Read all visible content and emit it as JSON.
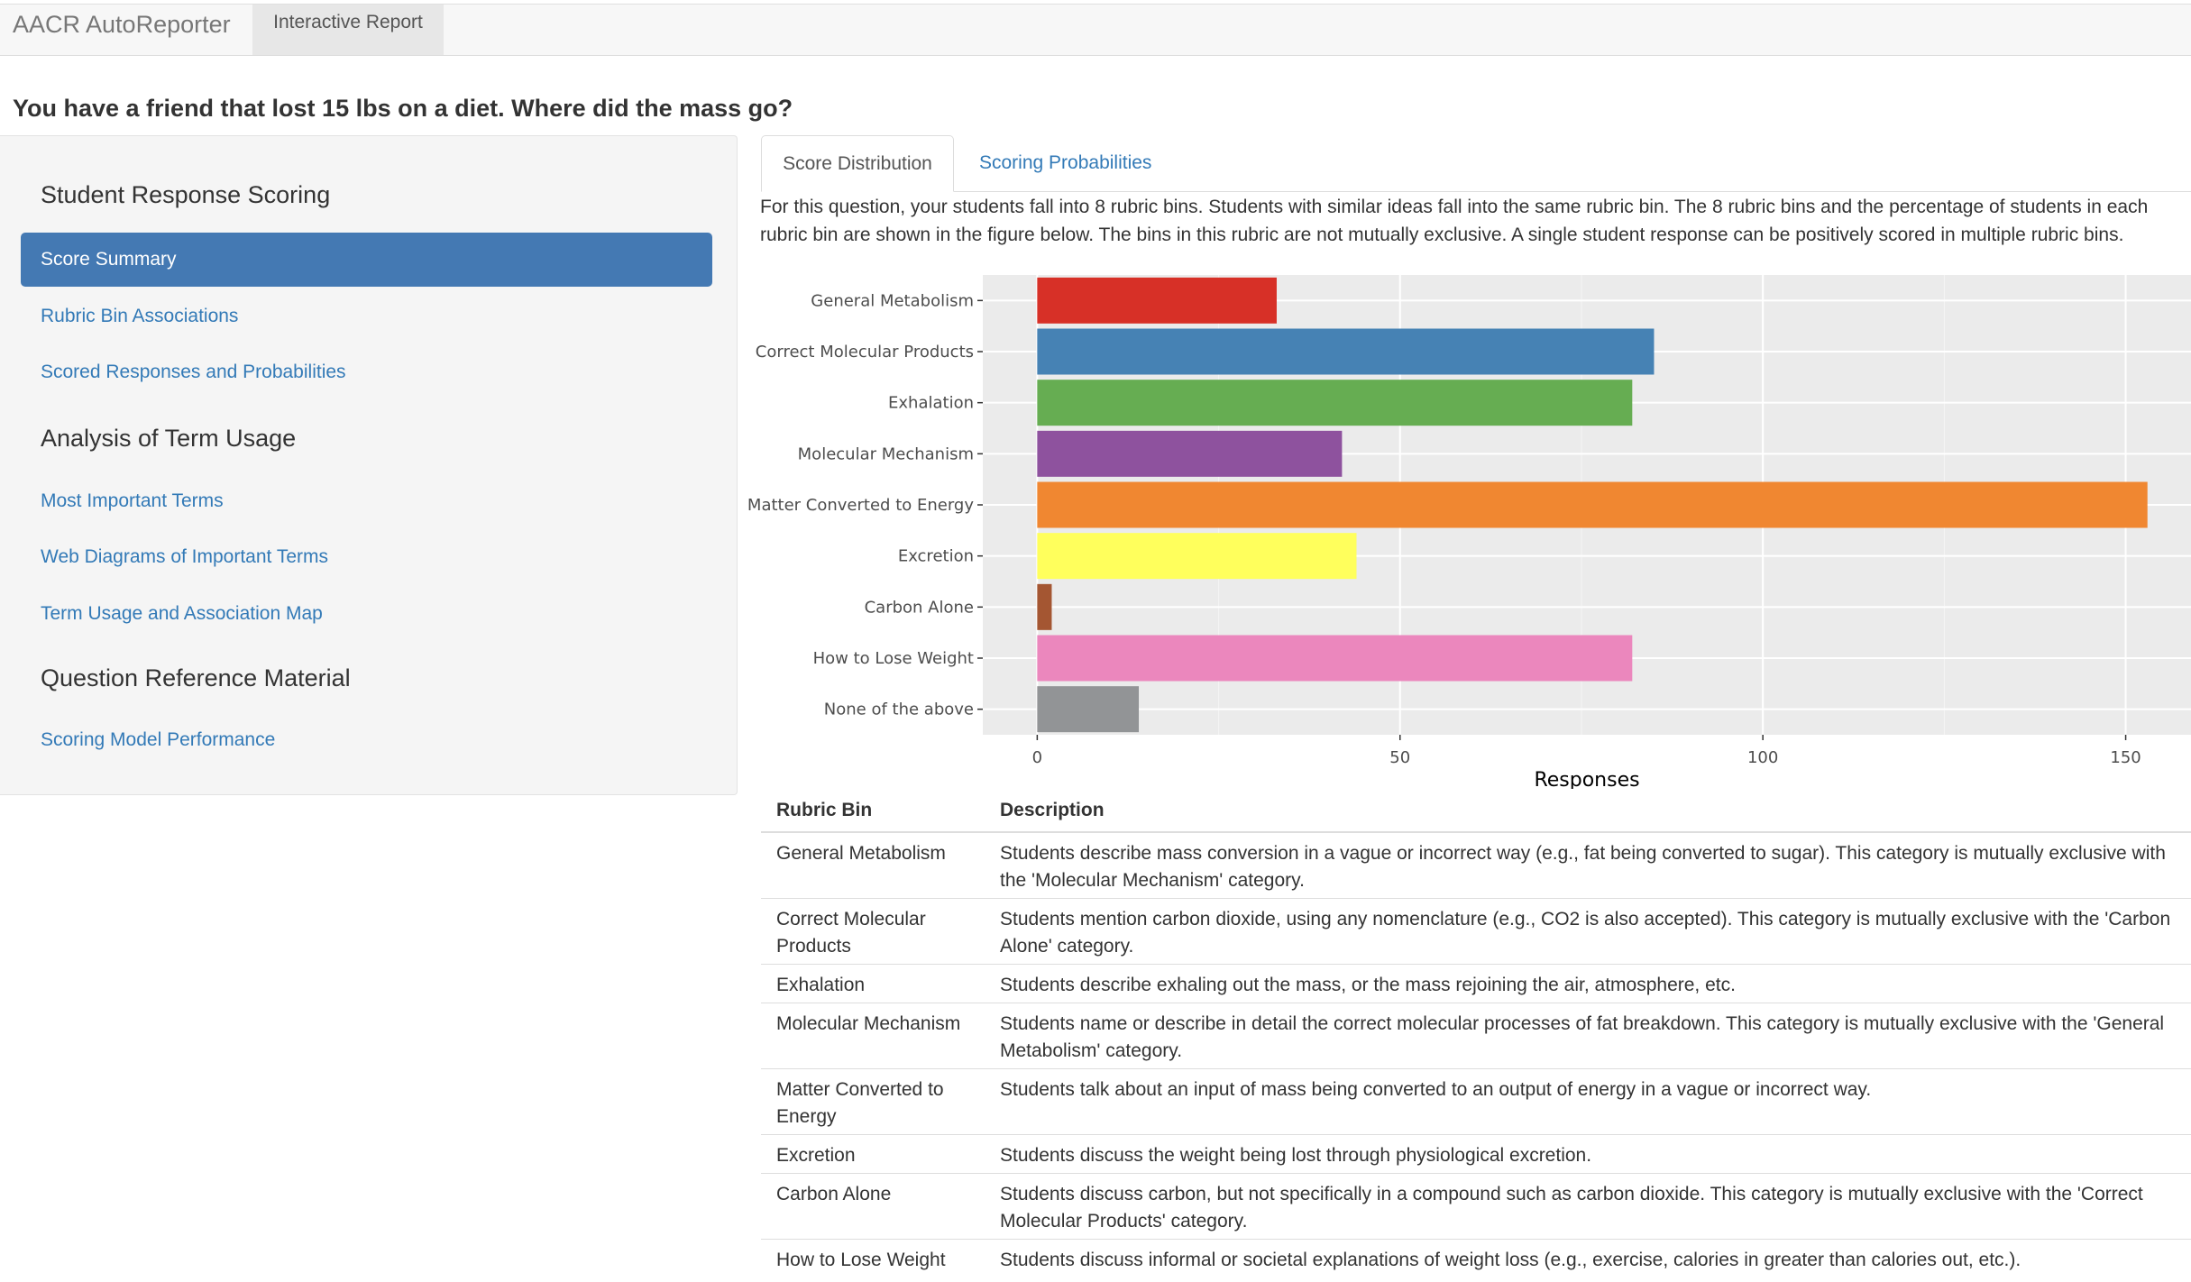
{
  "navbar": {
    "brand": "AACR AutoReporter",
    "tab": "Interactive Report"
  },
  "question": "You have a friend that lost 15 lbs on a diet. Where did the mass go?",
  "sidebar": {
    "sections": [
      {
        "heading": "Student Response Scoring",
        "items": [
          "Score Summary",
          "Rubric Bin Associations",
          "Scored Responses and Probabilities"
        ]
      },
      {
        "heading": "Analysis of Term Usage",
        "items": [
          "Most Important Terms",
          "Web Diagrams of Important Terms",
          "Term Usage and Association Map"
        ]
      },
      {
        "heading": "Question Reference Material",
        "items": [
          "Scoring Model Performance"
        ]
      }
    ],
    "active_item": "Score Summary"
  },
  "tabs": {
    "active": "Score Distribution",
    "other": "Scoring Probabilities"
  },
  "intro": "For this question, your students fall into 8 rubric bins. Students with similar ideas fall into the same rubric bin. The 8 rubric bins and the percentage of students in each rubric bin are shown in the figure below. The bins in this rubric are not mutually exclusive. A single student response can be positively scored in multiple rubric bins.",
  "chart_data": {
    "type": "bar",
    "orientation": "horizontal",
    "categories": [
      "General Metabolism",
      "Correct Molecular Products",
      "Exhalation",
      "Molecular Mechanism",
      "Matter Converted to Energy",
      "Excretion",
      "Carbon Alone",
      "How to Lose Weight",
      "None of the above"
    ],
    "values": [
      33,
      85,
      82,
      42,
      153,
      44,
      2,
      82,
      14
    ],
    "colors": [
      "#d73027",
      "#4682b4",
      "#66ad52",
      "#8e529e",
      "#f08731",
      "#ffff5c",
      "#a45632",
      "#eb87bd",
      "#929496"
    ],
    "xlabel": "Responses",
    "ylabel": "",
    "xlim": [
      -7.5,
      159
    ],
    "xticks": [
      0,
      50,
      100,
      150
    ],
    "grid": true,
    "background": "#ebebeb"
  },
  "table": {
    "headers": [
      "Rubric Bin",
      "Description"
    ],
    "rows": [
      [
        "General Metabolism",
        "Students describe mass conversion in a vague or incorrect way (e.g., fat being converted to sugar). This category is mutually exclusive with the 'Molecular Mechanism' category."
      ],
      [
        "Correct Molecular Products",
        "Students mention carbon dioxide, using any nomenclature (e.g., CO2 is also accepted). This category is mutually exclusive with the 'Carbon Alone' category."
      ],
      [
        "Exhalation",
        "Students describe exhaling out the mass, or the mass rejoining the air, atmosphere, etc."
      ],
      [
        "Molecular Mechanism",
        "Students name or describe in detail the correct molecular processes of fat breakdown. This category is mutually exclusive with the 'General Metabolism' category."
      ],
      [
        "Matter Converted to Energy",
        "Students talk about an input of mass being converted to an output of energy in a vague or incorrect way."
      ],
      [
        "Excretion",
        "Students discuss the weight being lost through physiological excretion."
      ],
      [
        "Carbon Alone",
        "Students discuss carbon, but not specifically in a compound such as carbon dioxide. This category is mutually exclusive with the 'Correct Molecular Products' category."
      ],
      [
        "How to Lose Weight",
        "Students discuss informal or societal explanations of weight loss (e.g., exercise, calories in greater than calories out, etc.)."
      ]
    ]
  }
}
